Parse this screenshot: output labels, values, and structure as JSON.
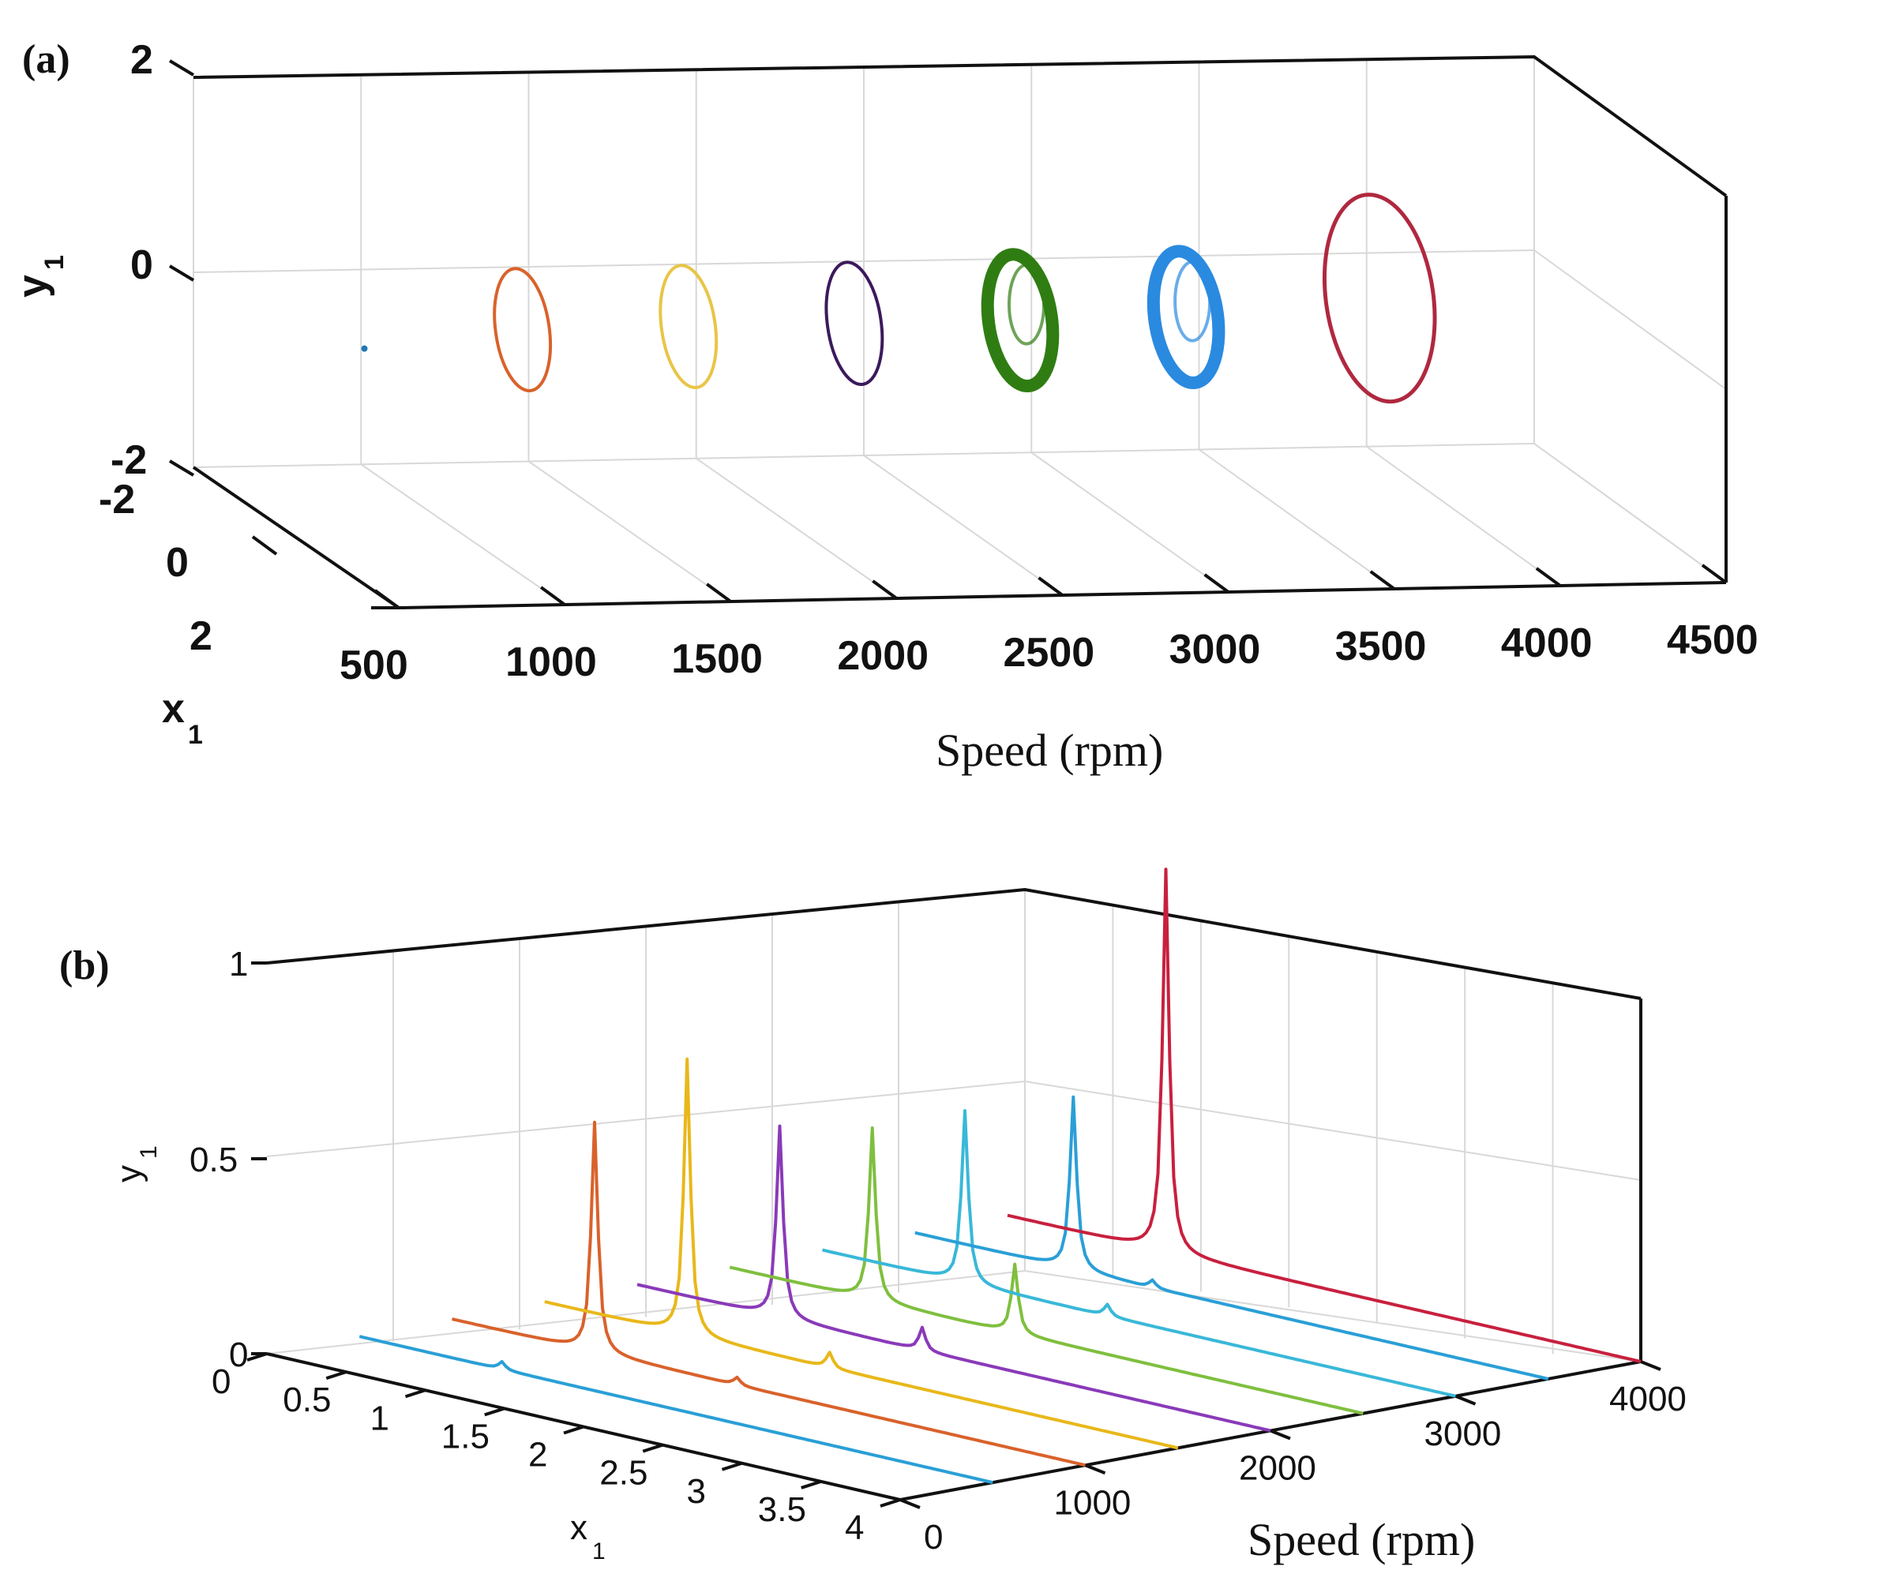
{
  "chart_data": [
    {
      "panel": "(a)",
      "type": "scatter",
      "title": "",
      "xlabel": "Speed (rpm)",
      "ylabel": "y",
      "ylabel_sub": "1",
      "zlabel": "x",
      "zlabel_sub": "1",
      "x_ticks": [
        "500",
        "1000",
        "1500",
        "2000",
        "2500",
        "3000",
        "3500",
        "4000",
        "4500"
      ],
      "y_ticks": [
        "2",
        "0",
        "-2"
      ],
      "z_ticks": [
        "-2",
        "0",
        "2"
      ],
      "xlim": [
        500,
        4500
      ],
      "ylim": [
        -2,
        2
      ],
      "zlim": [
        -2,
        2
      ],
      "series": [
        {
          "name": "500 rpm",
          "speed": 500,
          "color": "#1f77b4",
          "kind": "point"
        },
        {
          "name": "1000 rpm",
          "speed": 1000,
          "color": "#d9622b",
          "kind": "orbit"
        },
        {
          "name": "1500 rpm",
          "speed": 1500,
          "color": "#e8c547",
          "kind": "orbit"
        },
        {
          "name": "2000 rpm",
          "speed": 2000,
          "color": "#3b1a5c",
          "kind": "orbit"
        },
        {
          "name": "2500 rpm",
          "speed": 2500,
          "color": "#2f7d12",
          "kind": "orbit-thick"
        },
        {
          "name": "3000 rpm",
          "speed": 3000,
          "color": "#2a8ae0",
          "kind": "orbit-thick"
        },
        {
          "name": "3500 rpm",
          "speed": 3500,
          "color": "#b0283f",
          "kind": "orbit-large"
        }
      ]
    },
    {
      "panel": "(b)",
      "type": "line",
      "title": "",
      "xlabel": "x",
      "xlabel_sub": "1",
      "ylabel": "y",
      "ylabel_sub": "1",
      "zlabel": "Speed (rpm)",
      "x_ticks": [
        "0",
        "0.5",
        "1",
        "1.5",
        "2",
        "2.5",
        "3",
        "3.5",
        "4"
      ],
      "y_ticks": [
        "1",
        "0.5",
        "0"
      ],
      "z_ticks": [
        "0",
        "1000",
        "2000",
        "3000",
        "4000"
      ],
      "xlim": [
        0,
        4
      ],
      "ylim": [
        0,
        1
      ],
      "zlim": [
        0,
        4000
      ],
      "series": [
        {
          "name": "500 rpm",
          "speed": 500,
          "color": "#2a9fd6",
          "peaks": [
            {
              "x": 0.9,
              "y": 0.02
            }
          ]
        },
        {
          "name": "1000 rpm",
          "speed": 1000,
          "color": "#d9622b",
          "peaks": [
            {
              "x": 0.9,
              "y": 0.6
            },
            {
              "x": 1.8,
              "y": 0.02
            }
          ]
        },
        {
          "name": "1500 rpm",
          "speed": 1500,
          "color": "#e8b81a",
          "peaks": [
            {
              "x": 0.9,
              "y": 0.72
            },
            {
              "x": 1.8,
              "y": 0.04
            }
          ]
        },
        {
          "name": "2000 rpm",
          "speed": 2000,
          "color": "#8a3ab9",
          "peaks": [
            {
              "x": 0.9,
              "y": 0.5
            },
            {
              "x": 1.8,
              "y": 0.06
            }
          ]
        },
        {
          "name": "2500 rpm",
          "speed": 2500,
          "color": "#7fbf3f",
          "peaks": [
            {
              "x": 0.9,
              "y": 0.45
            },
            {
              "x": 1.8,
              "y": 0.18
            }
          ]
        },
        {
          "name": "3000 rpm",
          "speed": 3000,
          "color": "#39b8d8",
          "peaks": [
            {
              "x": 0.9,
              "y": 0.45
            },
            {
              "x": 1.8,
              "y": 0.03
            }
          ]
        },
        {
          "name": "3500 rpm",
          "speed": 3500,
          "color": "#2a9fd6",
          "peaks": [
            {
              "x": 1.0,
              "y": 0.45
            },
            {
              "x": 1.5,
              "y": 0.02
            }
          ]
        },
        {
          "name": "4000 rpm",
          "speed": 4000,
          "color": "#c8203e",
          "peaks": [
            {
              "x": 1.0,
              "y": 1.0
            }
          ]
        }
      ]
    }
  ]
}
